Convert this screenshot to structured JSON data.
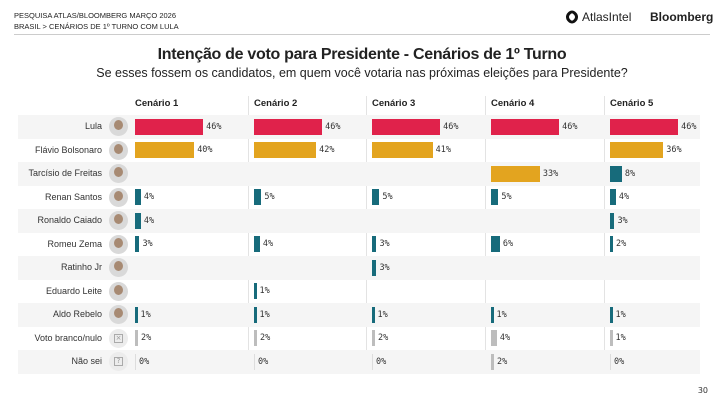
{
  "header": {
    "line1": "PESQUISA ATLAS/BLOOMBERG MARÇO 2026",
    "line2": "BRASIL > CENÁRIOS DE 1º TURNO COM LULA",
    "logo_atlas": "AtlasIntel",
    "logo_bloomberg": "Bloomberg"
  },
  "page_number": "30",
  "chart_data": {
    "type": "bar",
    "title": "Intenção de voto para Presidente - Cenários de 1º Turno",
    "subtitle": "Se esses fossem os candidatos, em quem você votaria nas próximas eleições para Presidente?",
    "scenarios": [
      "Cenário 1",
      "Cenário 2",
      "Cenário 3",
      "Cenário 4",
      "Cenário 5"
    ],
    "categories": [
      "Lula",
      "Flávio Bolsonaro",
      "Tarcísio de Freitas",
      "Renan Santos",
      "Ronaldo Caiado",
      "Romeu Zema",
      "Ratinho Jr",
      "Eduardo Leite",
      "Aldo Rebelo",
      "Voto branco/nulo",
      "Não sei"
    ],
    "values": [
      [
        46,
        46,
        46,
        46,
        46
      ],
      [
        40,
        42,
        41,
        null,
        36
      ],
      [
        null,
        null,
        null,
        33,
        8
      ],
      [
        4,
        5,
        5,
        5,
        4
      ],
      [
        4,
        null,
        null,
        null,
        3
      ],
      [
        3,
        4,
        3,
        6,
        2
      ],
      [
        null,
        null,
        3,
        null,
        null
      ],
      [
        null,
        1,
        null,
        null,
        null
      ],
      [
        1,
        1,
        1,
        1,
        1
      ],
      [
        2,
        2,
        2,
        4,
        1
      ],
      [
        0,
        0,
        0,
        2,
        0
      ]
    ],
    "unit": "%",
    "colors": {
      "lula": "#e0224b",
      "main_opponent": "#e3a41f",
      "others": "#176b7b",
      "blank_unsure": "#bdbdbd"
    },
    "row_colors": [
      "lula",
      "main_opponent",
      "main_opponent_or_others",
      "others",
      "others",
      "others",
      "others",
      "others",
      "others",
      "blank_unsure",
      "blank_unsure"
    ]
  }
}
